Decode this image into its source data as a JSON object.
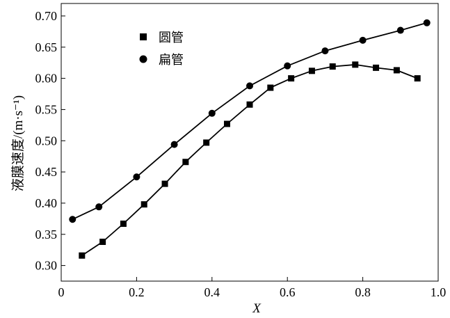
{
  "chart_data": {
    "type": "line",
    "title": "",
    "xlabel": "X",
    "ylabel": "液膜速度/(m·s⁻¹)",
    "xlim": [
      0,
      1.0
    ],
    "ylim": [
      0.275,
      0.72
    ],
    "xticks": [
      0,
      0.2,
      0.4,
      0.6,
      0.8,
      1.0
    ],
    "xtick_labels": [
      "0",
      "0.2",
      "0.4",
      "0.6",
      "0.8",
      "1.0"
    ],
    "yticks": [
      0.3,
      0.35,
      0.4,
      0.45,
      0.5,
      0.55,
      0.6,
      0.65,
      0.7
    ],
    "ytick_labels": [
      "0.30",
      "0.35",
      "0.40",
      "0.45",
      "0.50",
      "0.55",
      "0.60",
      "0.65",
      "0.70"
    ],
    "grid": false,
    "legend_position": "top-left",
    "series": [
      {
        "name": "圆管",
        "marker": "square",
        "color": "#000000",
        "x": [
          0.055,
          0.11,
          0.165,
          0.22,
          0.275,
          0.33,
          0.385,
          0.44,
          0.5,
          0.555,
          0.61,
          0.665,
          0.72,
          0.78,
          0.835,
          0.89,
          0.945
        ],
        "y": [
          0.316,
          0.338,
          0.367,
          0.398,
          0.431,
          0.466,
          0.497,
          0.527,
          0.558,
          0.585,
          0.6,
          0.612,
          0.619,
          0.622,
          0.617,
          0.613,
          0.6
        ]
      },
      {
        "name": "扁管",
        "marker": "circle",
        "color": "#000000",
        "x": [
          0.03,
          0.1,
          0.2,
          0.3,
          0.4,
          0.5,
          0.6,
          0.7,
          0.8,
          0.9,
          0.97
        ],
        "y": [
          0.374,
          0.394,
          0.442,
          0.494,
          0.544,
          0.588,
          0.62,
          0.644,
          0.661,
          0.677,
          0.689
        ]
      }
    ]
  }
}
